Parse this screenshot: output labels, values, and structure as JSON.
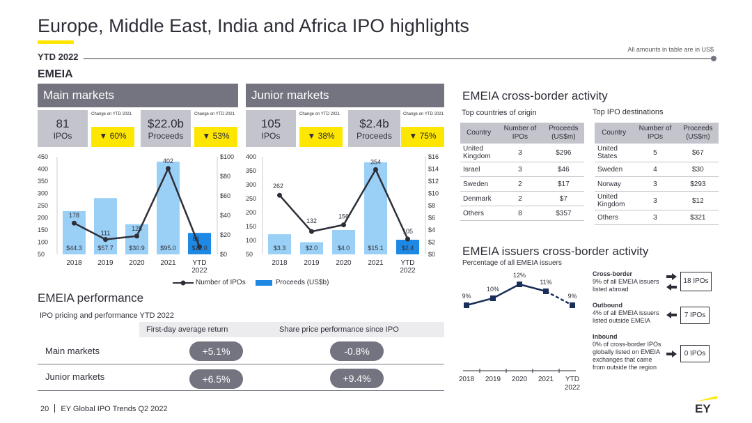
{
  "header": {
    "title": "Europe, Middle East, India and Africa IPO highlights",
    "ytd_label": "YTD 2022",
    "amounts_note": "All amounts in table are in US$",
    "region_label": "EMEIA"
  },
  "main_markets": {
    "heading": "Main markets",
    "ipos_value": "81",
    "ipos_label": "IPOs",
    "ipos_change_label": "Change on YTD 2021",
    "ipos_change": "▼ 60%",
    "proceeds_value": "$22.0b",
    "proceeds_label": "Proceeds",
    "proceeds_change_label": "Change on YTD 2021",
    "proceeds_change": "▼ 53%"
  },
  "junior_markets": {
    "heading": "Junior markets",
    "ipos_value": "105",
    "ipos_label": "IPOs",
    "ipos_change_label": "Change on YTD 2021",
    "ipos_change": "▼ 38%",
    "proceeds_value": "$2.4b",
    "proceeds_label": "Proceeds",
    "proceeds_change_label": "Change on YTD 2021",
    "proceeds_change": "▼ 75%"
  },
  "chart_data": [
    {
      "type": "bar",
      "name": "Main markets",
      "categories": [
        "2018",
        "2019",
        "2020",
        "2021",
        "YTD 2022"
      ],
      "series": [
        {
          "name": "Proceeds (US$b)",
          "values": [
            44.3,
            57.7,
            30.9,
            95.0,
            22.0
          ],
          "labels": [
            "$44.3",
            "$57.7",
            "$30.9",
            "$95.0",
            "$22.0"
          ],
          "axis": "right"
        },
        {
          "name": "Number of IPOs",
          "type": "line",
          "values": [
            178,
            111,
            125,
            402,
            81
          ],
          "axis": "left"
        }
      ],
      "y_left": {
        "min": 50,
        "max": 450,
        "ticks": [
          "450",
          "400",
          "350",
          "300",
          "250",
          "200",
          "150",
          "100",
          "50"
        ]
      },
      "y_right": {
        "min": 0,
        "max": 100,
        "ticks": [
          "$100",
          "$80",
          "$60",
          "$40",
          "$20",
          "$0"
        ]
      }
    },
    {
      "type": "bar",
      "name": "Junior markets",
      "categories": [
        "2018",
        "2019",
        "2020",
        "2021",
        "YTD 2022"
      ],
      "series": [
        {
          "name": "Proceeds (US$b)",
          "values": [
            3.3,
            2.0,
            4.0,
            15.1,
            2.4
          ],
          "labels": [
            "$3.3",
            "$2.0",
            "$4.0",
            "$15.1",
            "$2.4"
          ],
          "axis": "right"
        },
        {
          "name": "Number of IPOs",
          "type": "line",
          "values": [
            262,
            132,
            156,
            354,
            105
          ],
          "axis": "left"
        }
      ],
      "y_left": {
        "min": 50,
        "max": 400,
        "ticks": [
          "400",
          "350",
          "300",
          "250",
          "200",
          "150",
          "100",
          "50"
        ]
      },
      "y_right": {
        "min": 0,
        "max": 16,
        "ticks": [
          "$16",
          "$14",
          "$12",
          "$10",
          "$8",
          "$6",
          "$4",
          "$2",
          "$0"
        ]
      }
    },
    {
      "type": "line",
      "name": "EMEIA issuers cross-border activity",
      "categories": [
        "2018",
        "2019",
        "2020",
        "2021",
        "YTD 2022"
      ],
      "series": [
        {
          "name": "Percentage of all EMEIA issuers",
          "values": [
            9,
            10,
            12,
            11,
            9
          ],
          "labels": [
            "9%",
            "10%",
            "12%",
            "11%",
            "9%"
          ]
        }
      ]
    }
  ],
  "legend": {
    "ipos": "Number of IPOs",
    "proceeds": "Proceeds (US$b)"
  },
  "colors": {
    "bar_light": "#9bd0f6",
    "bar_dark": "#1e88e5",
    "line": "#2e2e38",
    "accent_yellow": "#ffe600",
    "gray_header": "#747480",
    "navy": "#1a2e5a"
  },
  "cross_border": {
    "heading": "EMEIA cross-border activity",
    "origin": {
      "title": "Top countries of origin",
      "columns": [
        "Country",
        "Number of IPOs",
        "Proceeds (US$m)"
      ],
      "rows": [
        [
          "United Kingdom",
          "3",
          "$296"
        ],
        [
          "Israel",
          "3",
          "$46"
        ],
        [
          "Sweden",
          "2",
          "$17"
        ],
        [
          "Denmark",
          "2",
          "$7"
        ],
        [
          "Others",
          "8",
          "$357"
        ]
      ]
    },
    "destinations": {
      "title": "Top IPO destinations",
      "columns": [
        "Country",
        "Number of IPOs",
        "Proceeds (US$m)"
      ],
      "rows": [
        [
          "United States",
          "5",
          "$67"
        ],
        [
          "Sweden",
          "4",
          "$30"
        ],
        [
          "Norway",
          "3",
          "$293"
        ],
        [
          "United Kingdom",
          "3",
          "$12"
        ],
        [
          "Others",
          "3",
          "$321"
        ]
      ]
    }
  },
  "issuers": {
    "heading": "EMEIA issuers cross-border activity",
    "subheading": "Percentage of all EMEIA issuers",
    "cross_border_title": "Cross-border",
    "cross_border_text": "9% of all EMEIA issuers listed abroad",
    "cross_border_box": "18 IPOs",
    "outbound_title": "Outbound",
    "outbound_text": "4% of all EMEIA issuers listed outside EMEIA",
    "outbound_box": "7 IPOs",
    "inbound_title": "Inbound",
    "inbound_text": "0% of cross-border IPOs globally listed on EMEIA exchanges that came from outside the region",
    "inbound_box": "0 IPOs"
  },
  "performance": {
    "heading": "EMEIA performance",
    "subheading": "IPO pricing and performance YTD 2022",
    "col1": "First-day  average return",
    "col2": "Share price performance since IPO",
    "rows": [
      {
        "label": "Main markets",
        "first_day": "+5.1%",
        "since_ipo": "-0.8%"
      },
      {
        "label": "Junior markets",
        "first_day": "+6.5%",
        "since_ipo": "+9.4%"
      }
    ]
  },
  "footer": {
    "page": "20",
    "text": "EY Global IPO Trends Q2 2022",
    "logo": "EY"
  }
}
